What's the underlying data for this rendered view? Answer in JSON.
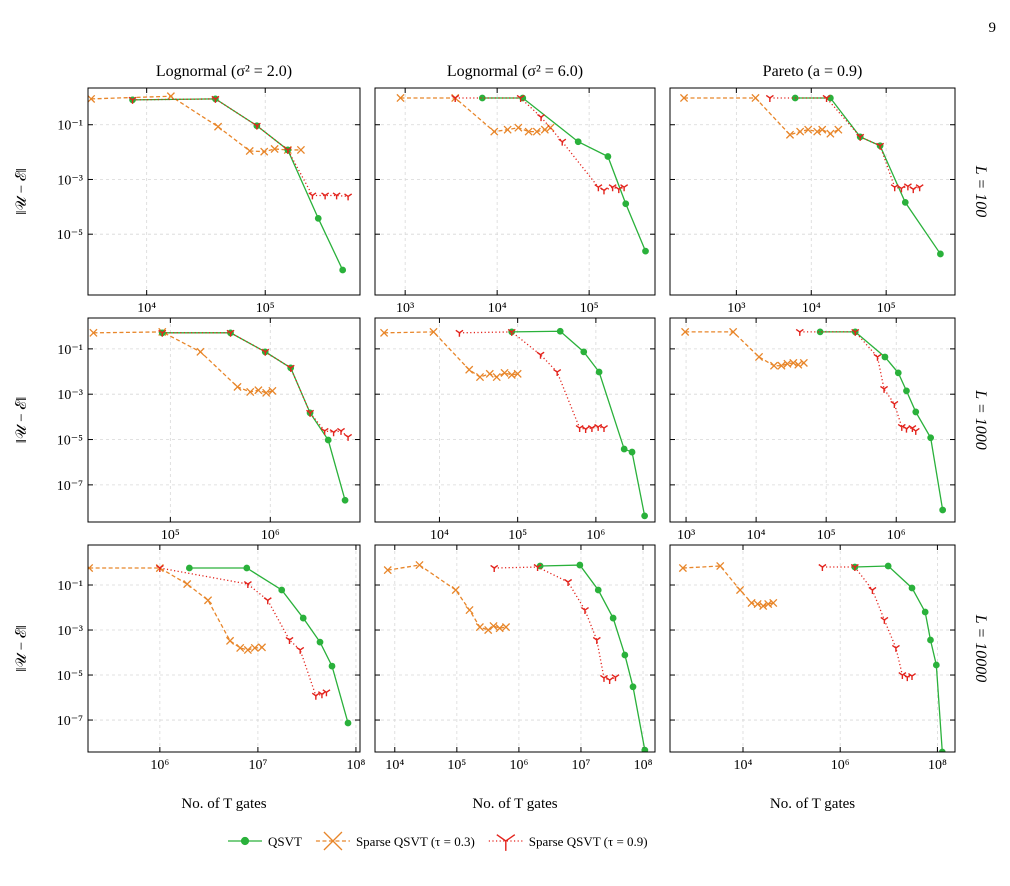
{
  "page_number": "9",
  "chart_data": {
    "type": "line",
    "log_x": true,
    "log_y": true,
    "grid": true,
    "legend": "lower center",
    "xlabel": "No. of T gates",
    "ylabel": "‖𝒰 − ℰ‖",
    "columns": [
      "Lognormal (σ² = 2.0)",
      "Lognormal (σ² = 6.0)",
      "Pareto (a = 0.9)"
    ],
    "rows": [
      {
        "label": "L = 100",
        "ylim": [
          6e-08,
          2.2
        ],
        "yticks": [
          {
            "value": 0.1,
            "label": "10⁻¹"
          },
          {
            "value": 0.001,
            "label": "10⁻³"
          },
          {
            "value": 1e-05,
            "label": "10⁻⁵"
          }
        ]
      },
      {
        "label": "L = 1000",
        "ylim": [
          2.3e-09,
          2.3
        ],
        "yticks": [
          {
            "value": 0.1,
            "label": "10⁻¹"
          },
          {
            "value": 0.001,
            "label": "10⁻³"
          },
          {
            "value": 1e-05,
            "label": "10⁻⁵"
          },
          {
            "value": 1e-07,
            "label": "10⁻⁷"
          }
        ]
      },
      {
        "label": "L = 10000",
        "ylim": [
          3.8e-09,
          6
        ],
        "yticks": [
          {
            "value": 0.1,
            "label": "10⁻¹"
          },
          {
            "value": 0.001,
            "label": "10⁻³"
          },
          {
            "value": 1e-05,
            "label": "10⁻⁵"
          },
          {
            "value": 1e-07,
            "label": "10⁻⁷"
          }
        ]
      }
    ],
    "series": [
      {
        "name": "QSVT",
        "color": "#2ab13b",
        "marker": "circle",
        "linestyle": "solid"
      },
      {
        "name": "Sparse QSVT (τ = 0.3)",
        "color": "#e8862a",
        "marker": "x",
        "linestyle": "dashed"
      },
      {
        "name": "Sparse QSVT (τ = 0.9)",
        "color": "#e3231c",
        "marker": "tri_down",
        "linestyle": "dotted"
      }
    ],
    "panels": [
      {
        "xlim": [
          3200,
          630000
        ],
        "xticks": [
          {
            "value": 10000,
            "label": "10⁴"
          },
          {
            "value": 100000,
            "label": "10⁵"
          }
        ],
        "data": [
          {
            "x": [
              7600,
              38000,
              85000,
              155000,
              280000,
              450000
            ],
            "y": [
              0.81,
              0.88,
              0.092,
              0.012,
              3.8e-05,
              4.9e-07
            ]
          },
          {
            "x": [
              3400,
              16000,
              40000,
              74000,
              98000,
              120000,
              155000,
              200000
            ],
            "y": [
              0.88,
              1.1,
              0.085,
              0.011,
              0.0104,
              0.013,
              0.012,
              0.012
            ]
          },
          {
            "x": [
              7600,
              38000,
              85000,
              155000,
              250000,
              320000,
              400000,
              500000
            ],
            "y": [
              0.81,
              0.88,
              0.092,
              0.012,
              0.00026,
              0.00026,
              0.00026,
              0.00024
            ]
          }
        ]
      },
      {
        "xlim": [
          470,
          520000
        ],
        "xticks": [
          {
            "value": 1000,
            "label": "10³"
          },
          {
            "value": 10000,
            "label": "10⁴"
          },
          {
            "value": 100000,
            "label": "10⁵"
          }
        ],
        "data": [
          {
            "x": [
              6900,
              19000,
              76000,
              160000,
              250000,
              410000
            ],
            "y": [
              0.95,
              0.95,
              0.024,
              0.0069,
              0.00013,
              2.4e-06
            ]
          },
          {
            "x": [
              890,
              3500,
              9300,
              13000,
              17000,
              22000,
              27000,
              33000,
              38000
            ],
            "y": [
              0.95,
              0.95,
              0.056,
              0.066,
              0.078,
              0.056,
              0.056,
              0.066,
              0.078
            ]
          },
          {
            "x": [
              3500,
              18000,
              30000,
              51000,
              126000,
              145000,
              180000,
              210000,
              240000
            ],
            "y": [
              0.95,
              0.95,
              0.19,
              0.024,
              0.00052,
              0.0004,
              0.00052,
              0.00044,
              0.00052
            ]
          }
        ]
      },
      {
        "xlim": [
          130,
          830000
        ],
        "xticks": [
          {
            "value": 1000,
            "label": "10³"
          },
          {
            "value": 10000,
            "label": "10⁴"
          },
          {
            "value": 100000,
            "label": "10⁵"
          }
        ],
        "data": [
          {
            "x": [
              6100,
              18000,
              45000,
              83000,
              180000,
              530000
            ],
            "y": [
              0.95,
              0.95,
              0.036,
              0.017,
              0.000145,
              1.9e-06
            ]
          },
          {
            "x": [
              200,
              1800,
              5200,
              7100,
              9100,
              12000,
              14000,
              18000,
              23000
            ],
            "y": [
              0.95,
              0.95,
              0.043,
              0.056,
              0.066,
              0.056,
              0.066,
              0.047,
              0.066
            ]
          },
          {
            "x": [
              2800,
              16000,
              45000,
              83000,
              130000,
              160000,
              195000,
              230000,
              280000
            ],
            "y": [
              0.95,
              0.95,
              0.036,
              0.017,
              0.00052,
              0.00047,
              0.00056,
              0.00044,
              0.00052
            ]
          }
        ]
      },
      {
        "xlim": [
          15000,
          7900000
        ],
        "xticks": [
          {
            "value": 100000,
            "label": "10⁵"
          },
          {
            "value": 1000000,
            "label": "10⁶"
          }
        ],
        "data": [
          {
            "x": [
              83000,
              400000,
              890000,
              1600000,
              2500000,
              3800000,
              5600000
            ],
            "y": [
              0.51,
              0.51,
              0.074,
              0.0145,
              0.00015,
              9.5e-06,
              2.1e-08
            ]
          },
          {
            "x": [
              17000,
              83000,
              200000,
              470000,
              630000,
              760000,
              910000,
              1050000
            ],
            "y": [
              0.51,
              0.56,
              0.074,
              0.0021,
              0.00126,
              0.0015,
              0.00115,
              0.0014
            ]
          },
          {
            "x": [
              83000,
              400000,
              890000,
              1600000,
              2500000,
              3500000,
              4300000,
              5100000,
              6000000
            ],
            "y": [
              0.51,
              0.51,
              0.074,
              0.0145,
              0.00015,
              2.4e-05,
              2.1e-05,
              2.4e-05,
              1.3e-05
            ]
          }
        ]
      },
      {
        "xlim": [
          1500,
          5700000
        ],
        "xticks": [
          {
            "value": 10000,
            "label": "10⁴"
          },
          {
            "value": 100000,
            "label": "10⁵"
          },
          {
            "value": 1000000,
            "label": "10⁶"
          }
        ],
        "data": [
          {
            "x": [
              84000,
              350000,
              700000,
              1100000,
              2300000,
              2900000,
              4200000
            ],
            "y": [
              0.56,
              0.6,
              0.074,
              0.0095,
              3.8e-06,
              2.8e-06,
              4.3e-09
            ]
          },
          {
            "x": [
              1960,
              8400,
              24000,
              33000,
              44000,
              54000,
              68000,
              84000,
              100000
            ],
            "y": [
              0.51,
              0.56,
              0.012,
              0.0057,
              0.0079,
              0.0057,
              0.0087,
              0.0071,
              0.0079
            ]
          },
          {
            "x": [
              18000,
              84000,
              196000,
              320000,
              620000,
              740000,
              890000,
              1070000,
              1270000
            ],
            "y": [
              0.51,
              0.56,
              0.055,
              0.0095,
              3.2e-05,
              2.9e-05,
              3.2e-05,
              3.6e-05,
              3.2e-05
            ]
          }
        ]
      },
      {
        "xlim": [
          590,
          6900000
        ],
        "xticks": [
          {
            "value": 1000,
            "label": "10³"
          },
          {
            "value": 10000,
            "label": "10⁴"
          },
          {
            "value": 100000,
            "label": "10⁵"
          },
          {
            "value": 1000000,
            "label": "10⁶"
          }
        ],
        "data": [
          {
            "x": [
              82000,
              260000,
              690000,
              1070000,
              1400000,
              1900000,
              3100000,
              4600000
            ],
            "y": [
              0.56,
              0.56,
              0.044,
              0.0087,
              0.0014,
              0.000165,
              1.2e-05,
              7.8e-09
            ]
          },
          {
            "x": [
              970,
              4700,
              11000,
              18000,
              23000,
              28000,
              34000,
              40000,
              48000
            ],
            "y": [
              0.56,
              0.56,
              0.044,
              0.018,
              0.018,
              0.022,
              0.024,
              0.02,
              0.024
            ]
          },
          {
            "x": [
              42000,
              260000,
              540000,
              670000,
              940000,
              1200000,
              1400000,
              1700000,
              1900000
            ],
            "y": [
              0.56,
              0.56,
              0.044,
              0.0017,
              0.00037,
              3.6e-05,
              3e-05,
              3.2e-05,
              2.4e-05
            ]
          }
        ]
      },
      {
        "xlim": [
          185000,
          110000000
        ],
        "xticks": [
          {
            "value": 1000000,
            "label": "10⁶"
          },
          {
            "value": 10000000,
            "label": "10⁷"
          },
          {
            "value": 100000000,
            "label": "10⁸"
          }
        ],
        "data": [
          {
            "x": [
              2000000,
              7700000,
              17500000,
              29000000,
              43000000,
              57000000,
              83000000
            ],
            "y": [
              0.57,
              0.57,
              0.06,
              0.0034,
              0.00029,
              2.5e-05,
              7.4e-08
            ]
          },
          {
            "x": [
              190000,
              1000000,
              1900000,
              3100000,
              5200000,
              6600000,
              7900000,
              9300000,
              11000000
            ],
            "y": [
              0.57,
              0.57,
              0.11,
              0.021,
              0.00033,
              0.00016,
              0.00013,
              0.00016,
              0.00017
            ]
          },
          {
            "x": [
              1000000,
              7900000,
              12600000,
              21000000,
              27000000,
              39000000,
              45000000,
              50000000
            ],
            "y": [
              0.57,
              0.11,
              0.021,
              0.00036,
              0.00013,
              1.2e-06,
              1.4e-06,
              1.7e-06
            ]
          }
        ]
      },
      {
        "xlim": [
          4800,
          156000000
        ],
        "xticks": [
          {
            "value": 10000,
            "label": "10⁴"
          },
          {
            "value": 100000,
            "label": "10⁵"
          },
          {
            "value": 1000000,
            "label": "10⁶"
          },
          {
            "value": 10000000,
            "label": "10⁷"
          },
          {
            "value": 100000000,
            "label": "10⁸"
          }
        ],
        "data": [
          {
            "x": [
              2200000,
              9600000,
              19000000,
              33000000,
              51000000,
              69000000,
              107000000
            ],
            "y": [
              0.7,
              0.77,
              0.06,
              0.0034,
              7.8e-05,
              3e-06,
              4.6e-09
            ]
          },
          {
            "x": [
              7700,
              25000,
              96000,
              160000,
              235000,
              320000,
              390000,
              490000,
              620000
            ],
            "y": [
              0.46,
              0.77,
              0.06,
              0.0077,
              0.00135,
              0.001,
              0.0015,
              0.0012,
              0.00135
            ]
          },
          {
            "x": [
              400000,
              2000000,
              6200000,
              11600000,
              18000000,
              23500000,
              29000000,
              36000000
            ],
            "y": [
              0.57,
              0.63,
              0.136,
              0.0077,
              0.00036,
              7.4e-06,
              6e-06,
              8e-06
            ]
          }
        ]
      },
      {
        "xlim": [
          315,
          230000000
        ],
        "xticks": [
          {
            "value": 10000,
            "label": "10⁴"
          },
          {
            "value": 1000000,
            "label": "10⁶"
          },
          {
            "value": 100000000,
            "label": "10⁸"
          }
        ],
        "data": [
          {
            "x": [
              2000000,
              9700000,
              30000000,
              56000000,
              72000000,
              95000000,
              126000000
            ],
            "y": [
              0.63,
              0.7,
              0.074,
              0.0063,
              0.00036,
              2.8e-05,
              3.8e-09
            ]
          },
          {
            "x": [
              580,
              3400,
              8700,
              15000,
              20000,
              26000,
              33000,
              42000
            ],
            "y": [
              0.57,
              0.7,
              0.06,
              0.016,
              0.0143,
              0.0117,
              0.0143,
              0.016
            ]
          },
          {
            "x": [
              430000,
              2000000,
              4600000,
              8100000,
              14000000,
              19000000,
              24000000,
              30000000
            ],
            "y": [
              0.63,
              0.63,
              0.06,
              0.0028,
              0.00016,
              1e-05,
              8e-06,
              9e-06
            ]
          }
        ]
      }
    ]
  }
}
